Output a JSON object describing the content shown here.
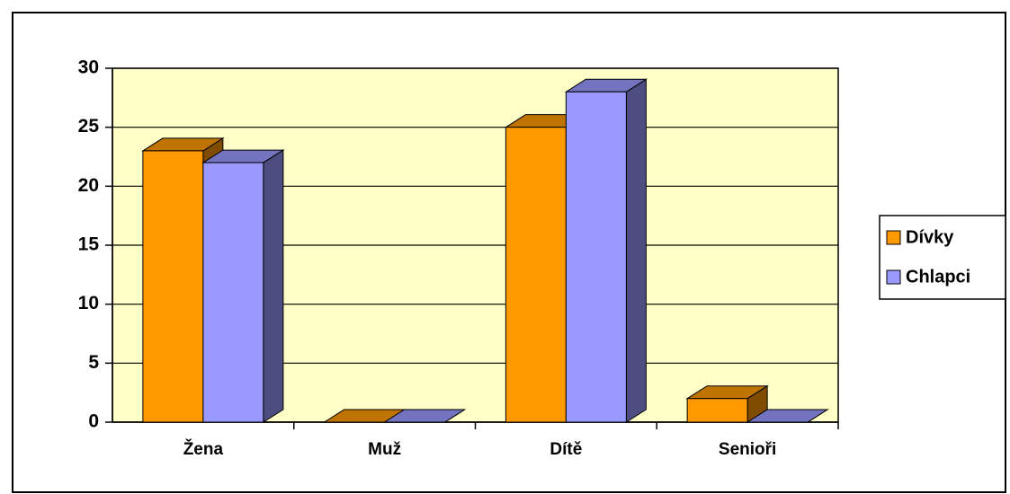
{
  "chart_data": {
    "type": "bar3d",
    "categories": [
      "Žena",
      "Muž",
      "Dítě",
      "Senioři"
    ],
    "series": [
      {
        "name": "Dívky",
        "color": "#FF9900",
        "values": [
          23,
          0,
          25,
          2
        ]
      },
      {
        "name": "Chlapci",
        "color": "#9999FF",
        "values": [
          22,
          0,
          28,
          0
        ]
      }
    ],
    "ylim": [
      0,
      30
    ],
    "yticks": [
      0,
      5,
      10,
      15,
      20,
      25,
      30
    ],
    "grid": true,
    "legend": "right"
  }
}
